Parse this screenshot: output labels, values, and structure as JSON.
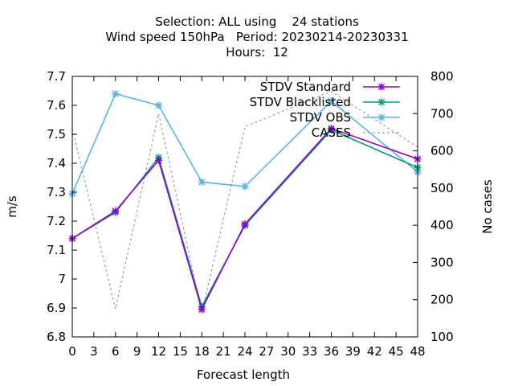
{
  "chart_data": {
    "type": "line",
    "title_lines": [
      "Selection: ALL using    24 stations",
      "Wind speed 150hPa   Period: 20230214-20230331",
      "Hours:  12"
    ],
    "xlabel": "Forecast length",
    "ylabel": "m/s",
    "y2label": "No cases",
    "xlim": [
      0,
      48
    ],
    "ylim": [
      6.8,
      7.7
    ],
    "y2lim": [
      100,
      800
    ],
    "xticks": [
      "0",
      "3",
      "6",
      "9",
      "12",
      "15",
      "18",
      "21",
      "24",
      "27",
      "30",
      "33",
      "36",
      "39",
      "42",
      "45",
      "48"
    ],
    "yticks": [
      "6.8",
      "6.9",
      "7",
      "7.1",
      "7.2",
      "7.3",
      "7.4",
      "7.5",
      "7.6",
      "7.7"
    ],
    "y2ticks": [
      "100",
      "200",
      "300",
      "400",
      "500",
      "600",
      "700",
      "800"
    ],
    "x": [
      0,
      6,
      12,
      18,
      24,
      36,
      48
    ],
    "legend_position": "top-right",
    "series": [
      {
        "name": "STDV Standard",
        "axis": "y",
        "color": "#9400d3",
        "style": "line-points",
        "values": [
          7.14,
          7.235,
          7.41,
          6.895,
          7.19,
          7.52,
          7.415
        ]
      },
      {
        "name": "STDV Blacklisted",
        "axis": "y",
        "color": "#009e73",
        "style": "line-points",
        "values": [
          7.14,
          7.23,
          7.42,
          6.905,
          7.185,
          7.515,
          7.385
        ]
      },
      {
        "name": "STDV OBS",
        "axis": "y",
        "color": "#56b4e9",
        "style": "line-points",
        "values": [
          7.295,
          7.64,
          7.6,
          7.335,
          7.32,
          7.615,
          7.37
        ]
      },
      {
        "name": "CASES",
        "axis": "y2",
        "color": "#a0a0a0",
        "style": "dashed",
        "values": [
          660,
          175,
          700,
          165,
          665,
          760,
          610
        ]
      }
    ]
  }
}
